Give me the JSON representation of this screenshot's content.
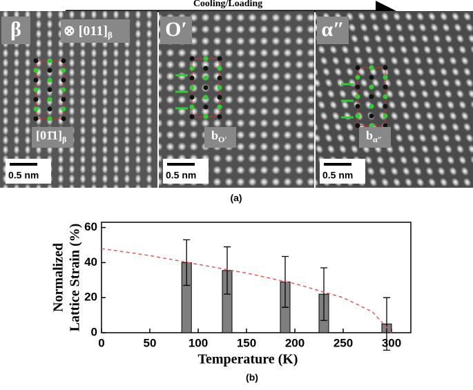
{
  "arrow_label": "Cooling/Loading",
  "panels": [
    {
      "phase": "β",
      "zone": {
        "text": "⊗ [011]",
        "sub": "β"
      },
      "vector": {
        "text": "[01̄1]",
        "sub": "β"
      },
      "scale": "0.5 nm"
    },
    {
      "phase": "O′",
      "vector": {
        "text": "b",
        "sub": "O′"
      },
      "scale": "0.5 nm"
    },
    {
      "phase": "α″",
      "vector": {
        "text": "b",
        "sub": "α″"
      },
      "scale": "0.5 nm"
    }
  ],
  "caption_a": "(a)",
  "caption_b": "(b)",
  "chart_data": {
    "type": "bar",
    "ylabel": [
      "Normalized",
      "Lattice Strain (%)"
    ],
    "xlabel": "Temperature (K)",
    "x": [
      88,
      130,
      190,
      230,
      295
    ],
    "values": [
      40,
      35.5,
      29,
      22,
      5
    ],
    "errors": [
      13,
      13.5,
      14.5,
      15,
      15
    ],
    "color": "#7f7f7f",
    "fit": {
      "x": [
        0,
        50,
        100,
        150,
        200,
        250,
        280,
        300
      ],
      "y": [
        48,
        44,
        39,
        34,
        28,
        20,
        12,
        0
      ],
      "color": "#e05a5a"
    },
    "xlim": [
      0,
      320
    ],
    "xticks": [
      0,
      50,
      100,
      150,
      200,
      250,
      300
    ],
    "ylim": [
      0,
      63
    ],
    "yticks": [
      0,
      20,
      40,
      60
    ]
  }
}
